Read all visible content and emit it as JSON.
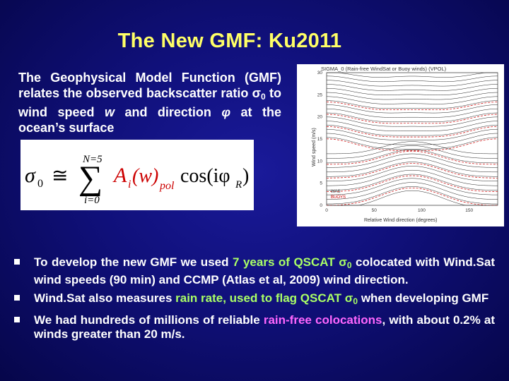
{
  "title": "The New GMF: Ku2011",
  "intro": {
    "line1": "The Geophysical Model Function (GMF) relates the observed backscatter ratio",
    "sigma": "σ",
    "sub0": "0",
    "line2": "to wind speed",
    "w": "w",
    "line3": "and direction",
    "phi": "φ",
    "line4": "at the ocean’s surface"
  },
  "formula": {
    "lhs": "σ",
    "lhs_sub": "0",
    "approx": "≅",
    "sum_top": "N=5",
    "sum": "∑",
    "sum_bottom": "i=0",
    "term": "A",
    "term_sub": "i",
    "term_arg": "(w)",
    "term_pol": "pol",
    "cos": "cos(iφ",
    "cos_sub": "R",
    "close": ")"
  },
  "plot": {
    "header": "SIGMA_0 (Rain-free WindSat or Buoy winds) (VPOL)",
    "ylabel": "Wind speed (m/s)",
    "xlabel": "Relative Wind direction (degrees)",
    "yticks": [
      "0",
      "5",
      "10",
      "15",
      "20",
      "25",
      "30"
    ],
    "xticks": [
      "0",
      "50",
      "100",
      "150"
    ],
    "legend": [
      "WAS",
      "BUOYS"
    ]
  },
  "bullets": [
    {
      "pre": "To develop the new GMF we used ",
      "hl": "7 years of QSCAT",
      "sig": "σ",
      "sub": "0",
      "mid": " colocated with Wind.Sat wind speeds (90 min) and CCMP (Atlas et al, 2009) wind direction."
    },
    {
      "pre": "Wind.Sat also measures ",
      "hl": "rain rate, used to flag QSCAT",
      "sig": "σ",
      "sub": "0",
      "mid": " when developing GMF"
    },
    {
      "pre": "We had hundreds of millions of reliable ",
      "hl": "rain-free colocations",
      "mid": ", with about 0.2% at winds greater than 20 m/s."
    }
  ]
}
